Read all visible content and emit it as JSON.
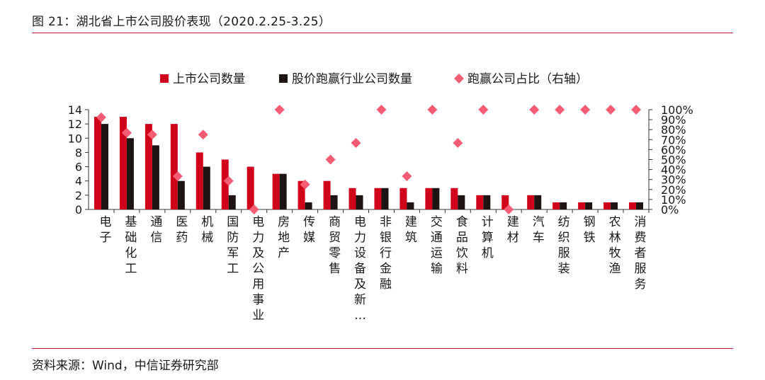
{
  "header": {
    "title": "图 21：湖北省上市公司股价表现（2020.2.25-3.25）"
  },
  "footer": {
    "source": "资料来源：Wind，中信证券研究部"
  },
  "colors": {
    "series1": "#d0021b",
    "series2": "#1e1414",
    "series3": "#f55b73",
    "rule": "#c8102e"
  },
  "chart_data": {
    "type": "bar",
    "categories": [
      "电子",
      "基础化工",
      "通信",
      "医药",
      "机械",
      "国防军工",
      "电力及公用事业",
      "房地产",
      "传媒",
      "商贸零售",
      "电力设备及新…",
      "非银行金融",
      "建筑",
      "交通运输",
      "食品饮料",
      "计算机",
      "建材",
      "汽车",
      "纺织服装",
      "钢铁",
      "农林牧渔",
      "消费者服务"
    ],
    "series": [
      {
        "name": "上市公司数量",
        "type": "bar",
        "axis": "left",
        "values": [
          13,
          13,
          12,
          12,
          8,
          7,
          6,
          5,
          4,
          4,
          3,
          3,
          3,
          3,
          3,
          2,
          2,
          2,
          1,
          1,
          1,
          1
        ]
      },
      {
        "name": "股价跑赢行业公司数量",
        "type": "bar",
        "axis": "left",
        "values": [
          12,
          10,
          9,
          4,
          6,
          2,
          0,
          5,
          1,
          2,
          2,
          3,
          1,
          3,
          2,
          2,
          0,
          2,
          1,
          1,
          1,
          1
        ]
      },
      {
        "name": "跑赢公司占比（右轴）",
        "type": "scatter",
        "axis": "right",
        "values": [
          92.3,
          76.9,
          75,
          33.3,
          75,
          28.6,
          0,
          100,
          25,
          50,
          66.7,
          100,
          33.3,
          100,
          66.7,
          100,
          0,
          100,
          100,
          100,
          100,
          100
        ]
      }
    ],
    "ylim": [
      0,
      14
    ],
    "yticks": [
      "0",
      "2",
      "4",
      "6",
      "8",
      "10",
      "12",
      "14"
    ],
    "y2lim": [
      0,
      100
    ],
    "y2ticks": [
      "0%",
      "10%",
      "20%",
      "30%",
      "40%",
      "50%",
      "60%",
      "70%",
      "80%",
      "90%",
      "100%"
    ],
    "legend_position": "top"
  }
}
